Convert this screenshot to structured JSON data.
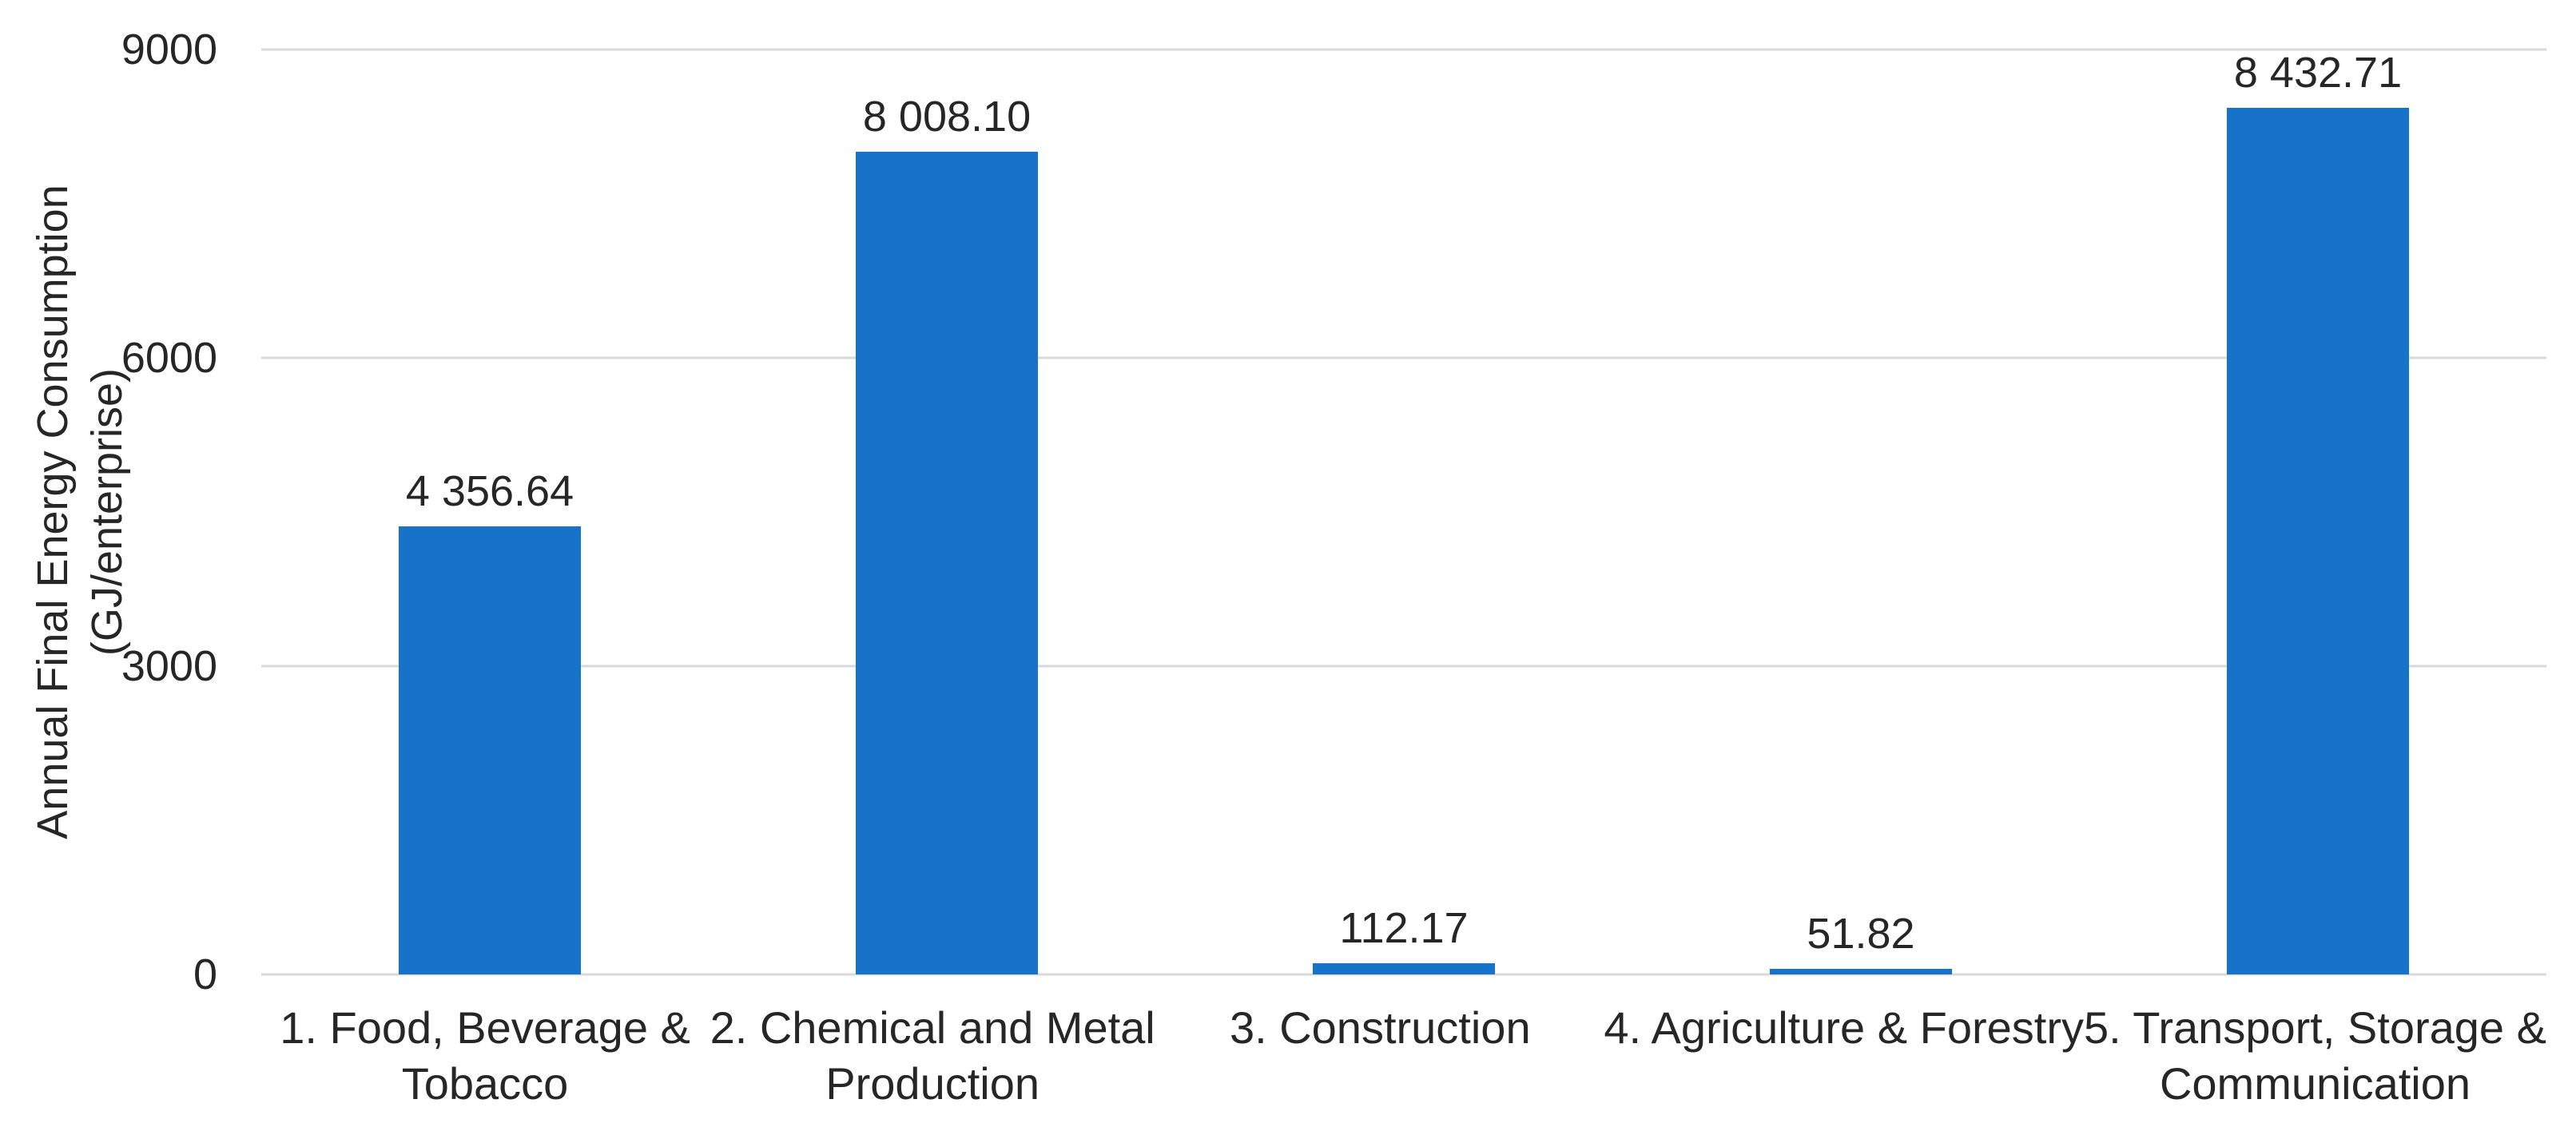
{
  "chart_data": {
    "type": "bar",
    "title": "",
    "xlabel": "",
    "ylabel": "Annual Final Energy Consumption\n(GJ/enterprise)",
    "categories": [
      "1. Food, Beverage &\nTobacco",
      "2. Chemical and Metal\nProduction",
      "3. Construction",
      "4. Agriculture & Forestry",
      "5. Transport, Storage &\nCommunication"
    ],
    "values": [
      4356.64,
      8008.1,
      112.17,
      51.82,
      8432.71
    ],
    "value_labels": [
      "4 356.64",
      "8 008.10",
      "112.17",
      "51.82",
      "8 432.71"
    ],
    "ylim": [
      0,
      9000
    ],
    "yticks": [
      0,
      3000,
      6000,
      9000
    ],
    "grid": true,
    "legend": false,
    "bar_color": "#1772C9",
    "gridline_color": "#D9D9D9",
    "axis_line_color": "#D9D9D9",
    "text_color": "#262626"
  }
}
